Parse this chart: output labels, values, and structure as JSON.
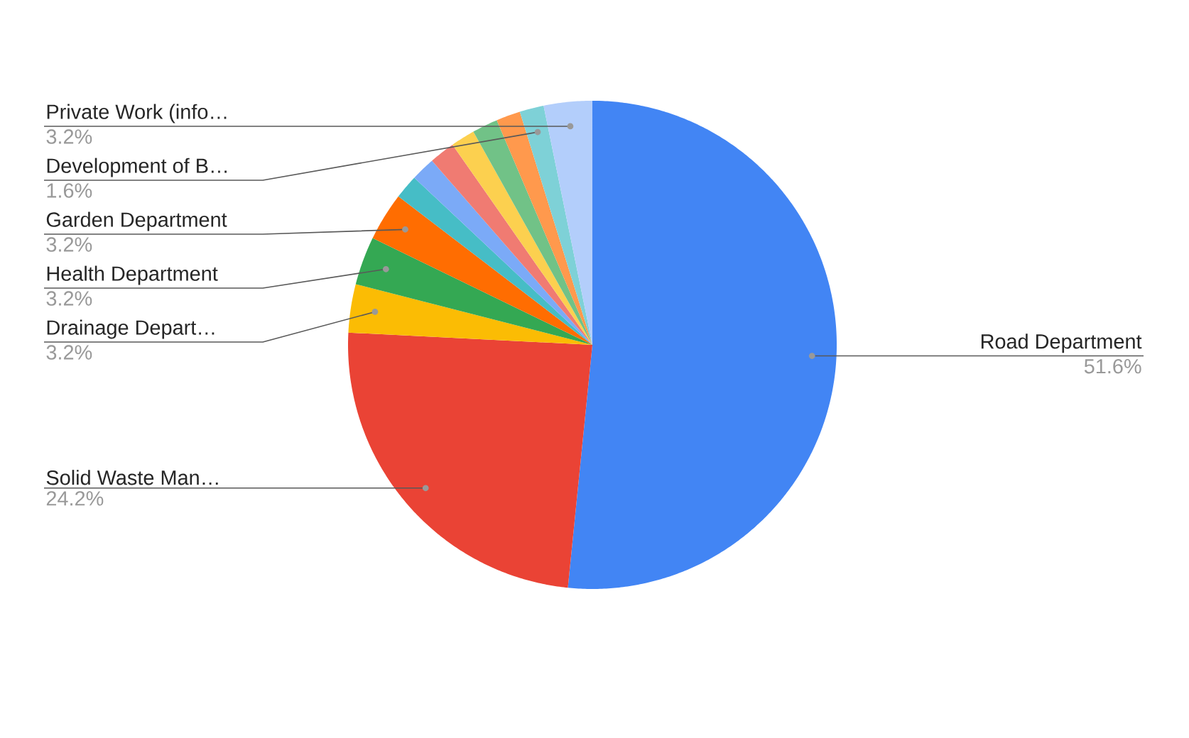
{
  "chart_data": {
    "type": "pie",
    "categories": [
      "Road Department",
      "Solid Waste Man…",
      "Drainage Depart…",
      "Health Department",
      "Garden Department",
      null,
      null,
      null,
      null,
      null,
      null,
      "Development of B…",
      "Private Work (info…"
    ],
    "values": [
      51.6,
      24.2,
      3.2,
      3.2,
      3.2,
      1.6,
      1.6,
      1.7,
      1.6,
      1.7,
      1.6,
      1.6,
      3.2
    ],
    "colors": [
      "#4285f4",
      "#ea4335",
      "#fbbc04",
      "#34a853",
      "#ff6d01",
      "#46bdc6",
      "#7baaf7",
      "#f07b72",
      "#fcd04f",
      "#71c287",
      "#ff994d",
      "#7ed1d7",
      "#b3cefb"
    ],
    "value_labels": [
      "51.6%",
      "24.2%",
      "3.2%",
      "3.2%",
      "3.2%",
      null,
      null,
      null,
      null,
      null,
      null,
      "1.6%",
      "3.2%"
    ]
  }
}
